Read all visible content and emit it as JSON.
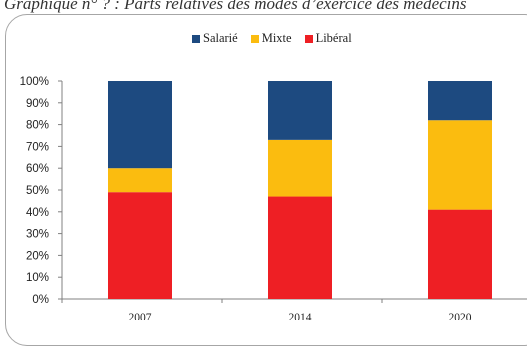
{
  "header": {
    "caption": "Graphique n° ? : Parts relatives des modes d’exercice des médecins"
  },
  "chart_data": {
    "type": "bar",
    "stacked": true,
    "categories": [
      "2007",
      "2014",
      "2020"
    ],
    "series": [
      {
        "name": "Libéral",
        "color": "#ee1f24",
        "values": [
          49,
          47,
          41
        ]
      },
      {
        "name": "Mixte",
        "color": "#fbbc0f",
        "values": [
          11,
          26,
          41
        ]
      },
      {
        "name": "Salarié",
        "color": "#1d4a80",
        "values": [
          40,
          27,
          18
        ]
      }
    ],
    "legend_order": [
      "Salarié",
      "Mixte",
      "Libéral"
    ],
    "legend_position": "top",
    "y_ticks": [
      "0%",
      "10%",
      "20%",
      "30%",
      "40%",
      "50%",
      "60%",
      "70%",
      "80%",
      "90%",
      "100%"
    ],
    "ylim": [
      0,
      100
    ],
    "grid": false
  }
}
